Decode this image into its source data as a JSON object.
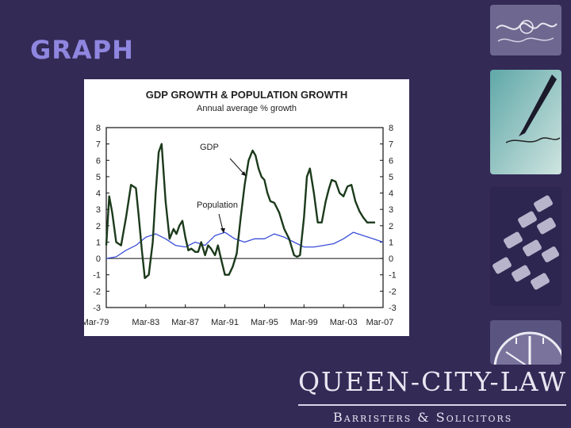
{
  "slide": {
    "title": "GRAPH"
  },
  "logo": {
    "main": "QUEEN-CITY-LAW",
    "sub": "Barristers & Solicitors"
  },
  "side_images": [
    "handwriting-image",
    "fountain-pen-image",
    "keyboard-image",
    "clock-image"
  ],
  "colors": {
    "background": "#332a56",
    "title": "#8f86e0",
    "gdp_line": "#1b3a1b",
    "population_line": "#3b4ed8"
  },
  "chart_data": {
    "type": "line",
    "title": "GDP GROWTH & POPULATION GROWTH",
    "subtitle": "Annual average % growth",
    "xlabel": "",
    "ylabel": "",
    "x_ticks": [
      "Mar-79",
      "Mar-83",
      "Mar-87",
      "Mar-91",
      "Mar-95",
      "Mar-99",
      "Mar-03",
      "Mar-07"
    ],
    "y_ticks": [
      8,
      7,
      6,
      5,
      4,
      3,
      2,
      1,
      0,
      -1,
      -2,
      -3
    ],
    "ylim": [
      -3,
      8
    ],
    "xlim": [
      1979.0,
      2007.0
    ],
    "grid": false,
    "zero_line": true,
    "annotations": [
      {
        "text": "GDP",
        "series": "GDP"
      },
      {
        "text": "Population",
        "series": "Population"
      }
    ],
    "series": [
      {
        "name": "GDP",
        "x": [
          1979.0,
          1979.3,
          1979.6,
          1980.0,
          1980.5,
          1981.0,
          1981.5,
          1982.0,
          1982.3,
          1982.6,
          1982.9,
          1983.3,
          1983.7,
          1984.0,
          1984.3,
          1984.6,
          1985.0,
          1985.4,
          1985.8,
          1986.1,
          1986.4,
          1986.7,
          1987.0,
          1987.3,
          1987.6,
          1988.0,
          1988.3,
          1988.6,
          1989.0,
          1989.3,
          1989.6,
          1990.0,
          1990.3,
          1990.6,
          1991.0,
          1991.4,
          1991.8,
          1992.2,
          1992.6,
          1993.0,
          1993.4,
          1993.8,
          1994.1,
          1994.4,
          1994.7,
          1995.0,
          1995.3,
          1995.6,
          1996.0,
          1996.5,
          1997.0,
          1997.5,
          1998.0,
          1998.3,
          1998.6,
          1999.0,
          1999.3,
          1999.6,
          2000.0,
          2000.4,
          2000.8,
          2001.2,
          2001.5,
          2001.8,
          2002.2,
          2002.6,
          2003.0,
          2003.4,
          2003.8,
          2004.2,
          2004.6,
          2005.0,
          2005.4,
          2005.8,
          2006.2
        ],
        "values": [
          0.8,
          3.8,
          2.8,
          1.0,
          0.8,
          2.5,
          4.5,
          4.3,
          2.5,
          0.5,
          -1.2,
          -1.0,
          1.0,
          4.0,
          6.5,
          7.0,
          3.5,
          1.2,
          1.8,
          1.5,
          2.0,
          2.3,
          1.3,
          0.5,
          0.6,
          0.4,
          0.4,
          1.0,
          0.2,
          0.8,
          0.6,
          0.2,
          0.8,
          0.0,
          -1.0,
          -1.0,
          -0.5,
          0.3,
          2.5,
          4.5,
          6.0,
          6.6,
          6.3,
          5.5,
          5.0,
          4.8,
          4.0,
          3.5,
          3.4,
          2.8,
          1.8,
          1.2,
          0.2,
          0.1,
          0.2,
          2.5,
          5.0,
          5.5,
          4.0,
          2.2,
          2.2,
          3.5,
          4.2,
          4.8,
          4.7,
          4.0,
          3.8,
          4.4,
          4.5,
          3.5,
          2.9,
          2.5,
          2.2,
          2.2,
          2.2
        ]
      },
      {
        "name": "Population",
        "x": [
          1979.0,
          1980.0,
          1981.0,
          1982.0,
          1983.0,
          1984.0,
          1985.0,
          1986.0,
          1987.0,
          1988.0,
          1989.0,
          1990.0,
          1991.0,
          1992.0,
          1993.0,
          1994.0,
          1995.0,
          1996.0,
          1997.0,
          1998.0,
          1999.0,
          2000.0,
          2001.0,
          2002.0,
          2003.0,
          2004.0,
          2005.0,
          2006.0,
          2007.0
        ],
        "values": [
          0.0,
          0.1,
          0.5,
          0.8,
          1.3,
          1.5,
          1.2,
          0.8,
          0.7,
          1.0,
          0.8,
          1.4,
          1.6,
          1.2,
          1.0,
          1.2,
          1.2,
          1.5,
          1.3,
          1.0,
          0.7,
          0.7,
          0.8,
          0.9,
          1.2,
          1.6,
          1.4,
          1.2,
          1.0
        ]
      }
    ]
  }
}
